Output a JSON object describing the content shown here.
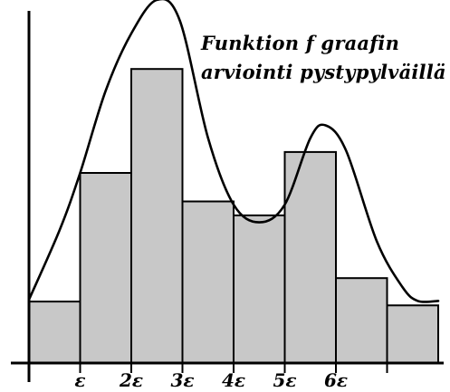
{
  "title": {
    "line1": "Funktion f graafin",
    "line2": "arviointi pystypylväillä"
  },
  "colors": {
    "bar_fill": "#c8c8c8",
    "stroke": "#000000",
    "background": "#ffffff"
  },
  "chart_data": {
    "type": "bar",
    "x_tick_labels": [
      "ε",
      "2ε",
      "3ε",
      "4ε",
      "5ε",
      "6ε"
    ],
    "bars": [
      {
        "from": 0,
        "to": 1,
        "height": 0.97
      },
      {
        "from": 1,
        "to": 2,
        "height": 3.0
      },
      {
        "from": 2,
        "to": 3,
        "height": 4.64
      },
      {
        "from": 3,
        "to": 4,
        "height": 2.55
      },
      {
        "from": 4,
        "to": 5,
        "height": 2.33
      },
      {
        "from": 5,
        "to": 6,
        "height": 3.33
      },
      {
        "from": 6,
        "to": 7,
        "height": 1.34
      },
      {
        "from": 7,
        "to": 8,
        "height": 0.91
      }
    ],
    "curve": {
      "x": [
        0,
        0.6,
        1.0,
        1.5,
        2.0,
        2.5,
        2.95,
        3.5,
        4.0,
        4.5,
        5.0,
        5.5,
        5.8,
        6.2,
        6.8,
        7.3,
        7.6,
        8.0
      ],
      "y": [
        1.0,
        2.1,
        3.0,
        4.3,
        5.2,
        5.73,
        5.4,
        3.55,
        2.5,
        2.22,
        2.5,
        3.55,
        3.75,
        3.35,
        1.92,
        1.2,
        0.98,
        0.98
      ]
    },
    "xlim": [
      0,
      8
    ],
    "ylim": [
      0,
      6
    ],
    "grid": false,
    "legend": "none"
  }
}
